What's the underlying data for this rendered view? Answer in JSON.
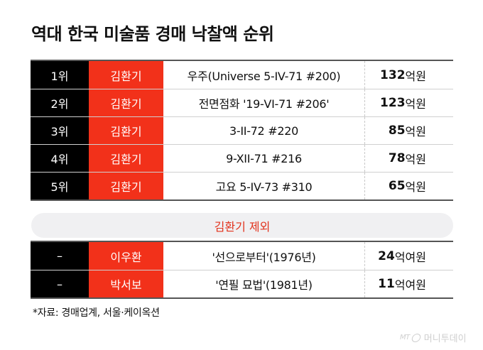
{
  "title": "역대 한국 미술품 경매 낙찰액 순위",
  "top_rankings": [
    {
      "rank": "1위",
      "artist": "김환기",
      "work": "우주(Universe 5-IV-71 #200)",
      "amount": "132",
      "unit": "억원"
    },
    {
      "rank": "2위",
      "artist": "김환기",
      "work": "전면점화 '19-VI-71 #206'",
      "amount": "123",
      "unit": "억원"
    },
    {
      "rank": "3위",
      "artist": "김환기",
      "work": "3-II-72 #220",
      "amount": "85",
      "unit": "억원"
    },
    {
      "rank": "4위",
      "artist": "김환기",
      "work": "9-XII-71 #216",
      "amount": "78",
      "unit": "억원"
    },
    {
      "rank": "5위",
      "artist": "김환기",
      "work": "고요 5-IV-73 #310",
      "amount": "65",
      "unit": "억원"
    }
  ],
  "excluded_label": "김환기 제외",
  "other_rankings": [
    {
      "rank": "–",
      "artist": "이우환",
      "work": "'선으로부터'(1976년)",
      "amount": "24",
      "unit": "억여원"
    },
    {
      "rank": "–",
      "artist": "박서보",
      "work": "'연필 묘법'(1981년)",
      "amount": "11",
      "unit": "억여원"
    }
  ],
  "source": "*자료: 경매업계, 서울·케이옥션",
  "watermark": {
    "mt": "MT",
    "name": "머니투데이"
  },
  "colors": {
    "rank_bg": "#000000",
    "artist_bg": "#f2311a",
    "accent_text": "#e2321c",
    "pill_bg": "#f0f0f2"
  }
}
